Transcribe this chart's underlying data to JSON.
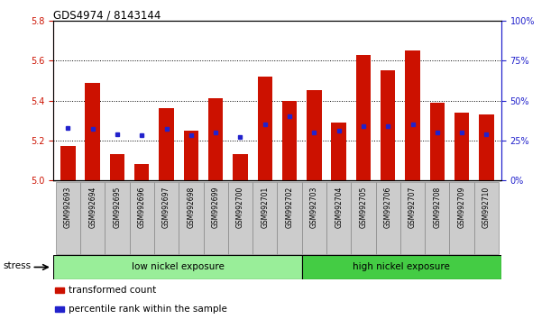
{
  "title": "GDS4974 / 8143144",
  "samples": [
    "GSM992693",
    "GSM992694",
    "GSM992695",
    "GSM992696",
    "GSM992697",
    "GSM992698",
    "GSM992699",
    "GSM992700",
    "GSM992701",
    "GSM992702",
    "GSM992703",
    "GSM992704",
    "GSM992705",
    "GSM992706",
    "GSM992707",
    "GSM992708",
    "GSM992709",
    "GSM992710"
  ],
  "transformed_count": [
    5.17,
    5.49,
    5.13,
    5.08,
    5.36,
    5.25,
    5.41,
    5.13,
    5.52,
    5.4,
    5.45,
    5.29,
    5.63,
    5.55,
    5.65,
    5.39,
    5.34,
    5.33
  ],
  "percentile_rank": [
    33,
    32,
    29,
    28,
    32,
    28,
    30,
    27,
    35,
    40,
    30,
    31,
    34,
    34,
    35,
    30,
    30,
    29
  ],
  "ylim_left": [
    5.0,
    5.8
  ],
  "ylim_right": [
    0,
    100
  ],
  "yticks_left": [
    5.0,
    5.2,
    5.4,
    5.6,
    5.8
  ],
  "yticks_right": [
    0,
    25,
    50,
    75,
    100
  ],
  "ytick_labels_right": [
    "0%",
    "25%",
    "50%",
    "75%",
    "100%"
  ],
  "bar_color": "#CC1100",
  "dot_color": "#2222CC",
  "bar_width": 0.6,
  "group1_label": "low nickel exposure",
  "group2_label": "high nickel exposure",
  "group1_color": "#99EE99",
  "group2_color": "#44CC44",
  "stress_label": "stress",
  "legend_bar_label": "transformed count",
  "legend_dot_label": "percentile rank within the sample",
  "bg_color": "#CCCCCC",
  "left_axis_color": "#CC1100",
  "right_axis_color": "#2222CC",
  "base_value": 5.0,
  "n_group1": 10,
  "n_group2": 8
}
